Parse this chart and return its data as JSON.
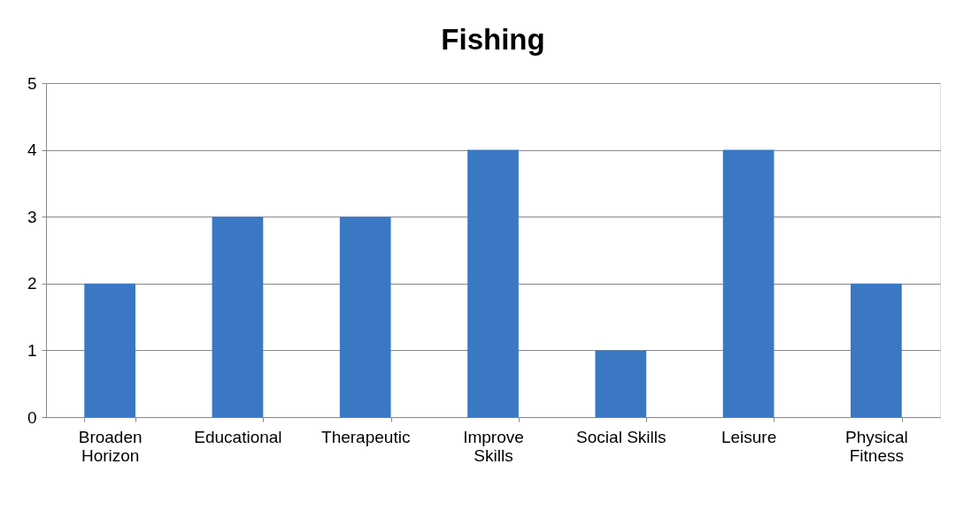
{
  "chart_data": {
    "type": "bar",
    "title": "Fishing",
    "categories": [
      "Broaden Horizon",
      "Educational",
      "Therapeutic",
      "Improve Skills",
      "Social Skills",
      "Leisure",
      "Physical Fitness"
    ],
    "values": [
      2,
      3,
      3,
      4,
      1,
      4,
      2
    ],
    "color": "#3a78c4",
    "ylim": [
      0,
      5
    ],
    "yticks": [
      0,
      1,
      2,
      3,
      4,
      5
    ],
    "grid": "y"
  }
}
